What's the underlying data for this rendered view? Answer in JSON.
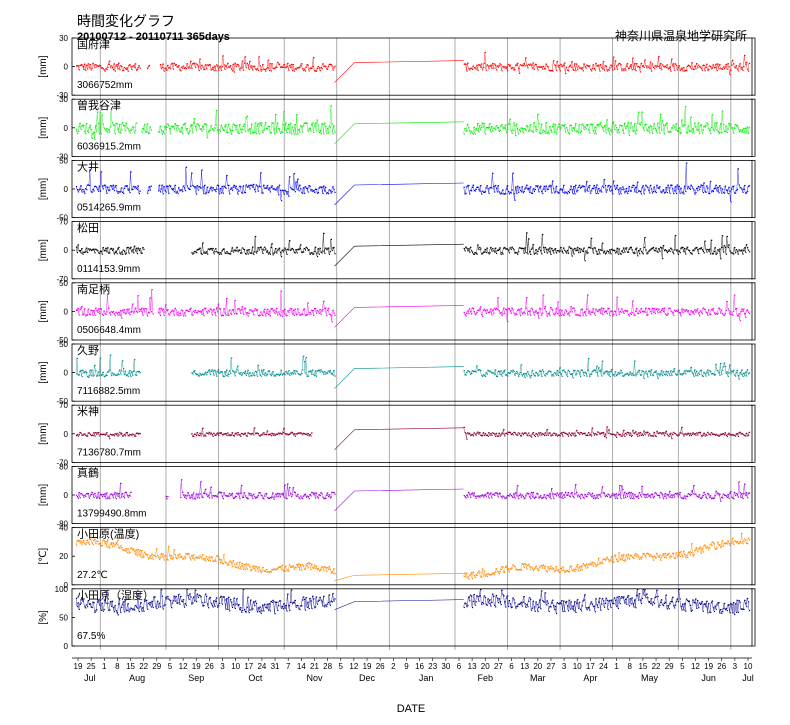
{
  "chart_data": {
    "type": "scatter",
    "title": "時間変化グラフ",
    "subtitle": "20100712 - 20110711 365days",
    "organization": "神奈川県温泉地学研究所",
    "xlabel": "DATE",
    "x_day_ticks": [
      "19",
      "25",
      "1",
      "8",
      "15",
      "22",
      "29",
      "5",
      "12",
      "19",
      "26",
      "3",
      "10",
      "17",
      "24",
      "31",
      "7",
      "14",
      "21",
      "28",
      "5",
      "12",
      "19",
      "26",
      "2",
      "9",
      "16",
      "23",
      "30",
      "6",
      "13",
      "20",
      "27",
      "6",
      "13",
      "20",
      "27",
      "3",
      "10",
      "17",
      "24",
      "1",
      "8",
      "15",
      "22",
      "29",
      "5",
      "12",
      "19",
      "26",
      "3",
      "10"
    ],
    "x_month_labels": [
      "Jul",
      "Aug",
      "Sep",
      "Oct",
      "Nov",
      "Dec",
      "Jan",
      "Feb",
      "Mar",
      "Apr",
      "May",
      "Jun",
      "Jul"
    ],
    "panels": [
      {
        "name": "国府津",
        "unit": "[mm]",
        "value_text": "3066752mm",
        "ylim": [
          -30,
          30
        ],
        "yticks": [
          "30",
          "0",
          "-30"
        ],
        "color": "#ff0000",
        "amp": 4.2,
        "spike": 9,
        "gaps": [
          [
            35,
            38
          ],
          [
            40,
            45
          ]
        ]
      },
      {
        "name": "曽我谷津",
        "unit": "[mm]",
        "value_text": "6036915.2mm",
        "ylim": [
          -30,
          30
        ],
        "yticks": [
          "30",
          "0",
          "-30"
        ],
        "color": "#00ee00",
        "amp": 6,
        "spike": 14,
        "gaps": [
          [
            33,
            35
          ],
          [
            41,
            44
          ]
        ]
      },
      {
        "name": "大井",
        "unit": "[mm]",
        "value_text": "0514265.9mm",
        "ylim": [
          -50,
          50
        ],
        "yticks": [
          "50",
          "0",
          "-50"
        ],
        "color": "#0000ee",
        "amp": 8,
        "spike": 28,
        "gaps": [
          [
            35,
            38
          ],
          [
            41,
            44
          ]
        ]
      },
      {
        "name": "松田",
        "unit": "[mm]",
        "value_text": "0114153.9mm",
        "ylim": [
          -70,
          70
        ],
        "yticks": [
          "70",
          "0",
          "-70"
        ],
        "color": "#000000",
        "amp": 9,
        "spike": 32,
        "gaps": [
          [
            37,
            62
          ]
        ]
      },
      {
        "name": "南足柄",
        "unit": "[mm]",
        "value_text": "0506648.4mm",
        "ylim": [
          -50,
          50
        ],
        "yticks": [
          "50",
          "0",
          "-50"
        ],
        "color": "#ee00ee",
        "amp": 7,
        "spike": 24,
        "gaps": [
          [
            42,
            44
          ]
        ]
      },
      {
        "name": "久野",
        "unit": "[mm]",
        "value_text": "7116882.5mm",
        "ylim": [
          -50,
          50
        ],
        "yticks": [
          "50",
          "0",
          "-50"
        ],
        "color": "#008b8b",
        "amp": 6,
        "spike": 20,
        "gaps": [
          [
            35,
            62
          ]
        ]
      },
      {
        "name": "米神",
        "unit": "[mm]",
        "value_text": "7136780.7mm",
        "ylim": [
          -70,
          70
        ],
        "yticks": [
          "70",
          "0",
          "-70"
        ],
        "color": "#8b0030",
        "amp": 5,
        "spike": 14,
        "gaps": [
          [
            35,
            62
          ],
          [
            128,
            152
          ]
        ]
      },
      {
        "name": "真鶴",
        "unit": "[mm]",
        "value_text": "13799490.8mm",
        "ylim": [
          -80,
          80
        ],
        "yticks": [
          "80",
          "0",
          "-80"
        ],
        "color": "#9a00dd",
        "amp": 9,
        "spike": 26,
        "gaps": [
          [
            30,
            48
          ],
          [
            50,
            56
          ]
        ]
      },
      {
        "name": "小田原(温度)",
        "unit": "[℃]",
        "value_text": "27.2℃",
        "ylim": [
          0,
          40
        ],
        "yticks": [
          "40",
          "20",
          "0"
        ],
        "color": "#ff8800",
        "amp": 2.5,
        "spike": 4,
        "gaps": []
      },
      {
        "name": "小田原（湿度）",
        "unit": "[%]",
        "value_text": "67.5%",
        "ylim": [
          0,
          100
        ],
        "yticks": [
          "100",
          "50",
          "0"
        ],
        "color": "#00008b",
        "amp": 12,
        "spike": 18,
        "gaps": []
      }
    ]
  }
}
